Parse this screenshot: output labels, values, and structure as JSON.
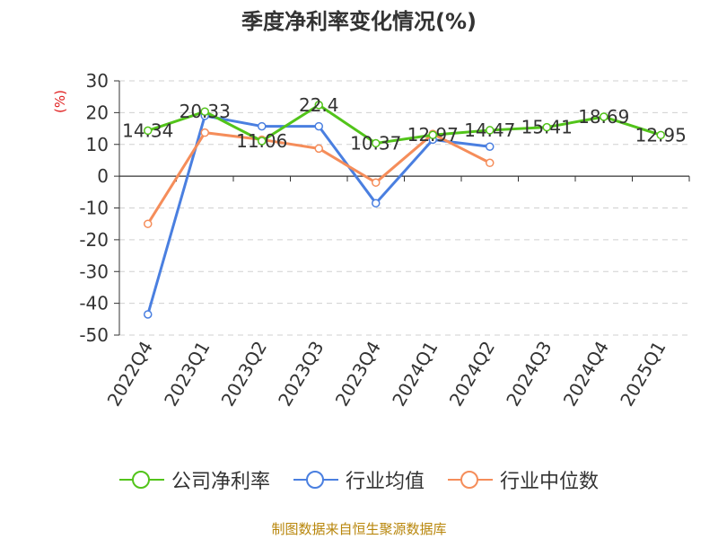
{
  "title": "季度净利率变化情况(%)",
  "y_unit": "(%)",
  "source": "制图数据来自恒生聚源数据库",
  "chart_data": {
    "type": "line",
    "title": "季度净利率变化情况(%)",
    "ylabel": "(%)",
    "xlabel": "",
    "categories": [
      "2022Q4",
      "2023Q1",
      "2023Q2",
      "2023Q3",
      "2023Q4",
      "2024Q1",
      "2024Q2",
      "2024Q3",
      "2024Q4",
      "2025Q1"
    ],
    "ylim": [
      -50,
      30
    ],
    "yticks": [
      30,
      20,
      10,
      0,
      -10,
      -20,
      -30,
      -40,
      -50
    ],
    "grid": true,
    "legend_position": "bottom",
    "series": [
      {
        "name": "公司净利率",
        "color": "#52c41a",
        "values": [
          14.34,
          20.33,
          11.06,
          22.4,
          10.37,
          12.97,
          14.47,
          15.41,
          18.69,
          12.95
        ],
        "labels": [
          "14.34",
          "20.33",
          "11.06",
          "22.4",
          "10.37",
          "12.97",
          "14.47",
          "15.41",
          "18.69",
          "12.95"
        ]
      },
      {
        "name": "行业均值",
        "color": "#4a7fe0",
        "values": [
          -43.5,
          19.0,
          15.7,
          15.7,
          -8.5,
          11.5,
          9.3,
          null,
          null,
          null
        ]
      },
      {
        "name": "行业中位数",
        "color": "#f58d5a",
        "values": [
          -15.0,
          13.7,
          11.5,
          8.7,
          -2.0,
          13.3,
          4.2,
          null,
          null,
          null
        ]
      }
    ]
  }
}
